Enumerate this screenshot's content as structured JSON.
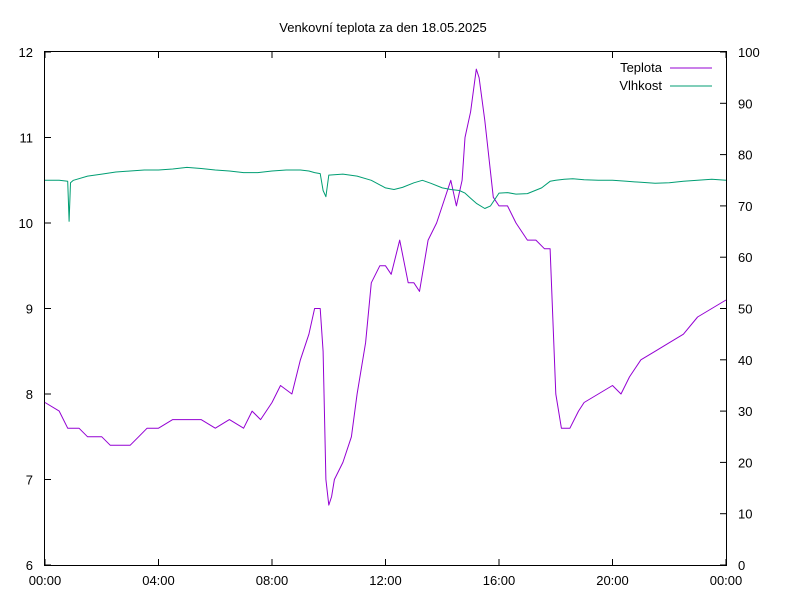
{
  "chart_data": {
    "type": "line",
    "title": "Venkovní teplota za den 18.05.2025",
    "xlabel": "",
    "ylabel": "",
    "y2label": "",
    "x_unit": "hour",
    "xlim": [
      0,
      24
    ],
    "ylim": [
      6,
      12
    ],
    "y2lim": [
      0,
      100
    ],
    "x_ticks": [
      {
        "value": 0,
        "label": "00:00"
      },
      {
        "value": 4,
        "label": "04:00"
      },
      {
        "value": 8,
        "label": "08:00"
      },
      {
        "value": 12,
        "label": "12:00"
      },
      {
        "value": 16,
        "label": "16:00"
      },
      {
        "value": 20,
        "label": "20:00"
      },
      {
        "value": 24,
        "label": "00:00"
      }
    ],
    "y_ticks": [
      6,
      7,
      8,
      9,
      10,
      11,
      12
    ],
    "y2_ticks": [
      0,
      10,
      20,
      30,
      40,
      50,
      60,
      70,
      80,
      90,
      100
    ],
    "grid": false,
    "legend": {
      "position": "top-right"
    },
    "series": [
      {
        "name": "Teplota",
        "axis": "y",
        "color": "#9400d3",
        "x": [
          0,
          0.5,
          0.8,
          1.2,
          1.5,
          2.0,
          2.3,
          2.6,
          3.0,
          3.3,
          3.6,
          4.0,
          4.5,
          5.0,
          5.5,
          6.0,
          6.5,
          7.0,
          7.3,
          7.6,
          8.0,
          8.3,
          8.7,
          9.0,
          9.3,
          9.5,
          9.7,
          9.8,
          9.9,
          10.0,
          10.1,
          10.2,
          10.5,
          10.8,
          11.0,
          11.3,
          11.5,
          11.8,
          12.0,
          12.2,
          12.5,
          12.8,
          13.0,
          13.2,
          13.5,
          13.8,
          14.0,
          14.3,
          14.5,
          14.7,
          14.8,
          15.0,
          15.2,
          15.3,
          15.5,
          15.8,
          16.0,
          16.3,
          16.6,
          17.0,
          17.3,
          17.6,
          17.8,
          18.0,
          18.2,
          18.5,
          18.8,
          19.0,
          19.5,
          20.0,
          20.3,
          20.6,
          21.0,
          21.5,
          22.0,
          22.5,
          23.0,
          23.5,
          24.0
        ],
        "values": [
          7.9,
          7.8,
          7.6,
          7.6,
          7.5,
          7.5,
          7.4,
          7.4,
          7.4,
          7.5,
          7.6,
          7.6,
          7.7,
          7.7,
          7.7,
          7.6,
          7.7,
          7.6,
          7.8,
          7.7,
          7.9,
          8.1,
          8.0,
          8.4,
          8.7,
          9.0,
          9.0,
          8.5,
          7.0,
          6.7,
          6.8,
          7.0,
          7.2,
          7.5,
          8.0,
          8.6,
          9.3,
          9.5,
          9.5,
          9.4,
          9.8,
          9.3,
          9.3,
          9.2,
          9.8,
          10.0,
          10.2,
          10.5,
          10.2,
          10.5,
          11.0,
          11.3,
          11.8,
          11.7,
          11.2,
          10.3,
          10.2,
          10.2,
          10.0,
          9.8,
          9.8,
          9.7,
          9.7,
          8.0,
          7.6,
          7.6,
          7.8,
          7.9,
          8.0,
          8.1,
          8.0,
          8.2,
          8.4,
          8.5,
          8.6,
          8.7,
          8.9,
          9.0,
          9.1
        ]
      },
      {
        "name": "Vlhkost",
        "axis": "y2",
        "color": "#009e73",
        "x": [
          0,
          0.5,
          0.8,
          0.85,
          0.9,
          1.0,
          1.5,
          2.0,
          2.5,
          3.0,
          3.5,
          4.0,
          4.5,
          5.0,
          5.5,
          6.0,
          6.5,
          7.0,
          7.5,
          8.0,
          8.5,
          9.0,
          9.3,
          9.5,
          9.7,
          9.8,
          9.9,
          10.0,
          10.5,
          11.0,
          11.5,
          12.0,
          12.3,
          12.6,
          13.0,
          13.3,
          13.6,
          14.0,
          14.3,
          14.6,
          14.8,
          15.0,
          15.2,
          15.5,
          15.7,
          16.0,
          16.3,
          16.6,
          17.0,
          17.5,
          17.8,
          18.0,
          18.3,
          18.6,
          19.0,
          19.5,
          20.0,
          20.5,
          21.0,
          21.5,
          22.0,
          22.5,
          23.0,
          23.5,
          24.0
        ],
        "values": [
          75.0,
          75.0,
          74.8,
          67.0,
          74.5,
          75.0,
          75.8,
          76.2,
          76.6,
          76.8,
          77.0,
          77.0,
          77.2,
          77.5,
          77.3,
          77.0,
          76.8,
          76.5,
          76.5,
          76.8,
          77.0,
          77.0,
          76.8,
          76.5,
          76.3,
          73.0,
          71.8,
          76.0,
          76.2,
          75.8,
          75.0,
          73.5,
          73.2,
          73.6,
          74.5,
          75.0,
          74.4,
          73.5,
          73.2,
          73.0,
          72.5,
          71.5,
          70.5,
          69.5,
          70.0,
          72.5,
          72.6,
          72.3,
          72.4,
          73.5,
          74.8,
          75.0,
          75.2,
          75.3,
          75.1,
          75.0,
          75.0,
          74.8,
          74.6,
          74.4,
          74.5,
          74.8,
          75.0,
          75.2,
          75.0
        ]
      }
    ]
  }
}
